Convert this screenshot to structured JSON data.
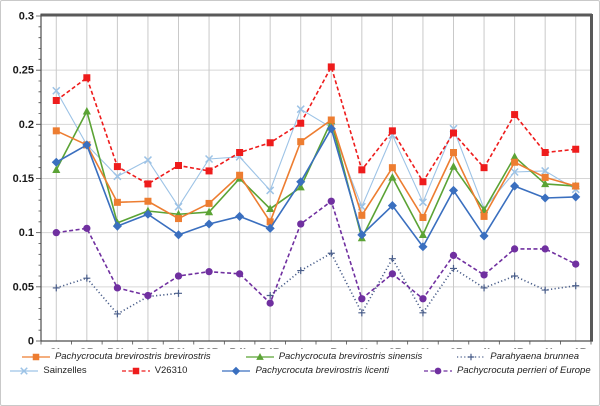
{
  "figure": {
    "background": "#ffffff",
    "border_color": "#c9c9c9",
    "plot_border_dark": "#595959",
    "axis_color": "#4d4d4d",
    "gridline_color_h": "#d6d6d6",
    "gridline_color_v": "#c9c9c9",
    "label_color": "#1a1a1a"
  },
  "chart_data": {
    "type": "line",
    "title": "",
    "xlabel": "",
    "ylabel": "",
    "categories": [
      "CL",
      "CB",
      "P2L",
      "P2B",
      "P3L",
      "P3B",
      "P4L",
      "P4B",
      "cL",
      "cB",
      "p2L",
      "p2B",
      "p3L",
      "p3B",
      "p4L",
      "p4B",
      "m1L",
      "m1B"
    ],
    "ylim": [
      0,
      0.3
    ],
    "ytick_step": 0.05,
    "ytick_labels": [
      "0",
      "0.05",
      "0.1",
      "0.15",
      "0.2",
      "0.25",
      "0.3"
    ],
    "grid": true,
    "legend_position": "bottom",
    "series": [
      {
        "name": "Pachycrocuta brevirostris brevirostris",
        "color": "#ED7D31",
        "line": "solid",
        "marker": "square",
        "italic": true,
        "values": [
          0.194,
          0.181,
          0.128,
          0.129,
          0.113,
          0.127,
          0.153,
          0.11,
          0.184,
          0.204,
          0.116,
          0.16,
          0.114,
          0.174,
          0.115,
          0.165,
          0.151,
          0.143
        ]
      },
      {
        "name": "Pachycrocuta brevirostris sinensis",
        "color": "#5BA335",
        "line": "solid",
        "marker": "triangle",
        "italic": true,
        "values": [
          0.158,
          0.212,
          0.109,
          0.12,
          0.117,
          0.119,
          0.15,
          0.122,
          0.142,
          0.203,
          0.095,
          0.151,
          0.098,
          0.161,
          0.121,
          0.17,
          0.145,
          0.143
        ]
      },
      {
        "name": "Parahyaena brunnea",
        "color": "#4A5E8A",
        "line": "dotted",
        "marker": "plus",
        "italic": true,
        "values": [
          0.049,
          0.058,
          0.025,
          0.041,
          0.044,
          null,
          null,
          0.042,
          0.065,
          0.081,
          0.026,
          0.076,
          0.026,
          0.067,
          0.049,
          0.06,
          0.047,
          0.051
        ]
      },
      {
        "name": "Sainzelles",
        "color": "#9DC3E6",
        "line": "solid",
        "marker": "x",
        "italic": false,
        "values": [
          0.231,
          0.181,
          0.152,
          0.167,
          0.124,
          0.168,
          0.17,
          0.139,
          0.214,
          0.197,
          0.124,
          0.19,
          0.128,
          0.196,
          0.122,
          0.156,
          0.157,
          0.14
        ]
      },
      {
        "name": "V26310",
        "color": "#EE1C1C",
        "line": "dashed",
        "marker": "square",
        "italic": false,
        "values": [
          0.222,
          0.243,
          0.161,
          0.145,
          0.162,
          0.157,
          0.174,
          0.183,
          0.201,
          0.253,
          0.158,
          0.194,
          0.147,
          0.192,
          0.16,
          0.209,
          0.174,
          0.177
        ]
      },
      {
        "name": "Pachycrocuta brevirostris licenti",
        "color": "#3A6FBF",
        "line": "solid",
        "marker": "diamond",
        "italic": true,
        "values": [
          0.165,
          0.181,
          0.106,
          0.117,
          0.098,
          0.108,
          0.115,
          0.104,
          0.147,
          0.196,
          0.098,
          0.125,
          0.087,
          0.139,
          0.097,
          0.143,
          0.132,
          0.133
        ]
      },
      {
        "name": "Pachycrocuta perrieri of Europe",
        "color": "#7030A0",
        "line": "dashed",
        "marker": "circle",
        "italic": true,
        "values": [
          0.1,
          0.104,
          0.049,
          0.042,
          0.06,
          0.064,
          0.062,
          0.035,
          0.108,
          0.129,
          0.039,
          0.062,
          0.039,
          0.079,
          0.061,
          0.085,
          0.085,
          0.071
        ]
      }
    ],
    "legend_rows": [
      [
        0,
        1,
        2
      ],
      [
        3,
        4,
        5,
        6
      ]
    ],
    "draw_order": [
      3,
      2,
      1,
      0,
      5,
      4,
      6
    ]
  }
}
